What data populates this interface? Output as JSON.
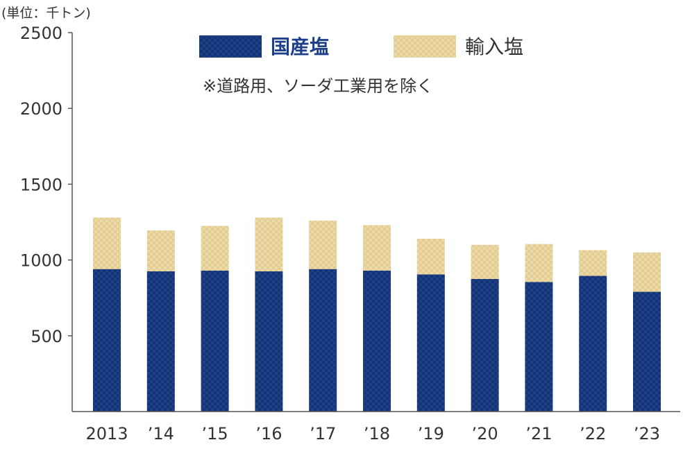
{
  "chart_data": {
    "type": "bar",
    "stacked": true,
    "unit_label": "(単位：千トン)",
    "note": "※道路用、ソーダ工業用を除く",
    "categories": [
      "2013",
      "’14",
      "’15",
      "’16",
      "’17",
      "’18",
      "’19",
      "’20",
      "’21",
      "’22",
      "’23"
    ],
    "series": [
      {
        "name": "国産塩",
        "color": "#1d3f8a",
        "values": [
          940,
          925,
          930,
          925,
          940,
          930,
          905,
          875,
          855,
          895,
          790
        ]
      },
      {
        "name": "輸入塩",
        "color": "#e9d6a2",
        "values": [
          340,
          270,
          295,
          355,
          320,
          300,
          235,
          225,
          250,
          170,
          260
        ]
      }
    ],
    "ylim": [
      0,
      2500
    ],
    "yticks": [
      500,
      1000,
      1500,
      2000,
      2500
    ],
    "legend_position": "top-center",
    "grid": false
  }
}
